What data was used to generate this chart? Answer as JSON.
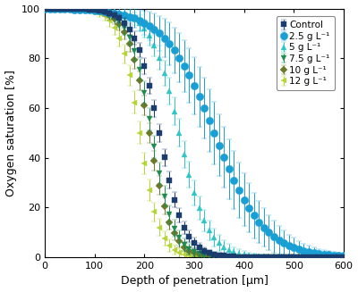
{
  "title": "",
  "xlabel": "Depth of penetration [μm]",
  "ylabel": "Oxygen saturation [%]",
  "xlim": [
    0,
    600
  ],
  "ylim": [
    0,
    100
  ],
  "xticks": [
    0,
    100,
    200,
    300,
    400,
    500,
    600
  ],
  "yticks": [
    0,
    20,
    40,
    60,
    80,
    100
  ],
  "series": [
    {
      "label": "Control",
      "color": "#1b3d6e",
      "marker": "s",
      "midpoint": 230,
      "steepness": 0.04,
      "error_scale": 3.0,
      "error_width": 60,
      "zorder": 6,
      "markersize": 4.5
    },
    {
      "label": "2.5 g L⁻¹",
      "color": "#1a9fd4",
      "marker": "o",
      "midpoint": 340,
      "steepness": 0.02,
      "error_scale": 12.0,
      "error_width": 100,
      "zorder": 5,
      "markersize": 6.0
    },
    {
      "label": "5 g L⁻¹",
      "color": "#30c4c4",
      "marker": "^",
      "midpoint": 270,
      "steepness": 0.035,
      "error_scale": 5.0,
      "error_width": 70,
      "zorder": 4,
      "markersize": 5.0
    },
    {
      "label": "7.5 g L⁻¹",
      "color": "#1e8c50",
      "marker": "v",
      "midpoint": 215,
      "steepness": 0.045,
      "error_scale": 4.0,
      "error_width": 55,
      "zorder": 3,
      "markersize": 5.0
    },
    {
      "label": "10 g L⁻¹",
      "color": "#6b7a2a",
      "marker": "D",
      "midpoint": 210,
      "steepness": 0.045,
      "error_scale": 3.5,
      "error_width": 55,
      "zorder": 2,
      "markersize": 4.5
    },
    {
      "label": "12 g L⁻¹",
      "color": "#b5d436",
      "marker": "<",
      "midpoint": 190,
      "steepness": 0.05,
      "error_scale": 4.0,
      "error_width": 50,
      "zorder": 1,
      "markersize": 5.0
    }
  ],
  "background_color": "#ffffff",
  "capsize": 2,
  "elinewidth": 0.7,
  "linewidth": 0.0
}
